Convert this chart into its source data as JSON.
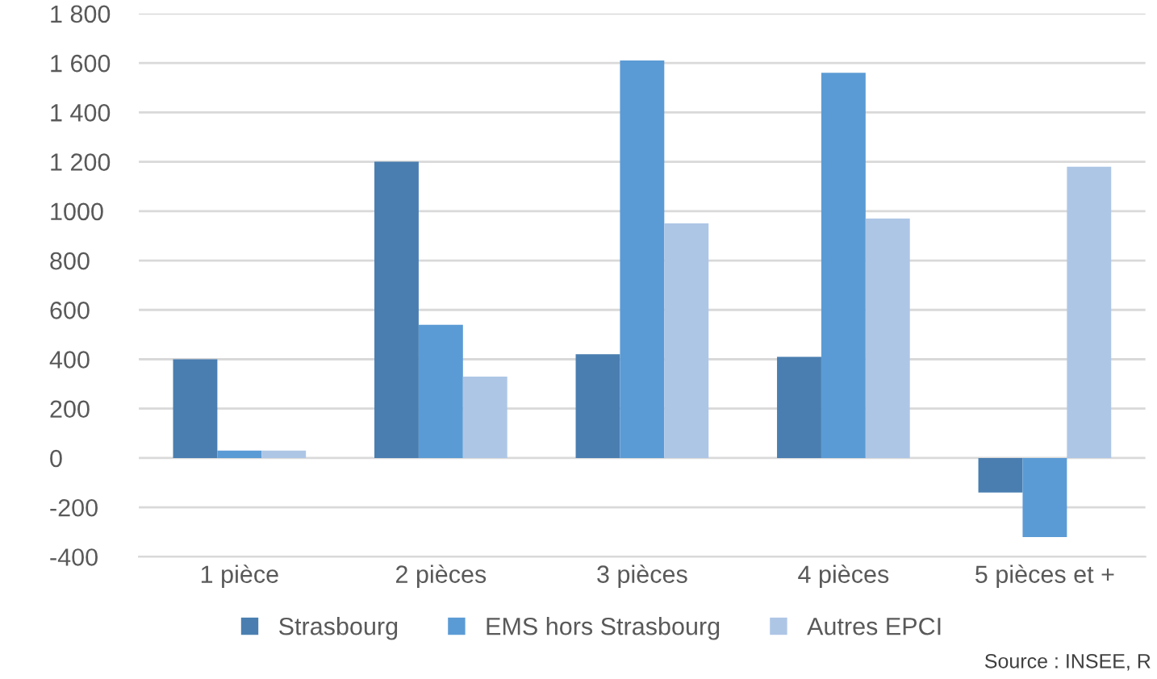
{
  "chart_data": {
    "type": "bar",
    "categories": [
      "1 pièce",
      "2 pièces",
      "3 pièces",
      "4 pièces",
      "5 pièces et +"
    ],
    "series": [
      {
        "name": "Strasbourg",
        "color": "#4a7eb0",
        "values": [
          400,
          1200,
          420,
          410,
          -140
        ]
      },
      {
        "name": "EMS hors Strasbourg",
        "color": "#5b9bd5",
        "values": [
          30,
          540,
          1610,
          1560,
          -320
        ]
      },
      {
        "name": "Autres EPCI",
        "color": "#aec6e6",
        "values": [
          30,
          330,
          950,
          970,
          1180
        ]
      }
    ],
    "ylim": [
      -400,
      1800
    ],
    "yticks": [
      {
        "value": -400,
        "label": "-400"
      },
      {
        "value": -200,
        "label": "-200"
      },
      0,
      200,
      400,
      600,
      800,
      1000,
      {
        "value": 1200,
        "label": "1 200"
      },
      {
        "value": 1400,
        "label": "1 400"
      },
      {
        "value": 1600,
        "label": "1 600"
      },
      {
        "value": 1800,
        "label": "1 800"
      }
    ],
    "grid": "y",
    "legend": "bottom",
    "annotations": [
      "Source : INSEE, R"
    ]
  }
}
